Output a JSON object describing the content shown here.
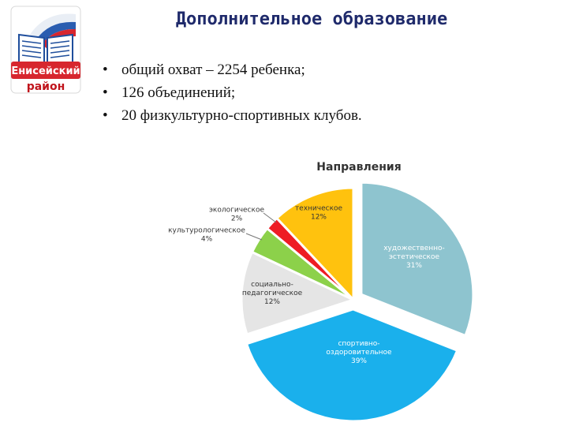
{
  "slide": {
    "title": "Дополнительное образование",
    "bullets": [
      "общий охват – 2254 ребенка;",
      "126 объединений;",
      "20 физкультурно-спортивных клубов."
    ],
    "logo": {
      "line1": "Енисейский",
      "line2": "район"
    }
  },
  "chart_data": {
    "type": "pie",
    "title": "Направления",
    "legend": "none",
    "slices": [
      {
        "label_lines": [
          "художественно-",
          "эстетическое"
        ],
        "value": 31,
        "value_label": "31%",
        "color": "#8ec4cf",
        "explode": 12,
        "label_fill": "#ffffff"
      },
      {
        "label_lines": [
          "спортивно-",
          "оздоровительное"
        ],
        "value": 39,
        "value_label": "39%",
        "color": "#1ab0ec",
        "explode": 12,
        "label_fill": "#ffffff"
      },
      {
        "label_lines": [
          "социально-",
          "педагогическое"
        ],
        "value": 12,
        "value_label": "12%",
        "color": "#e5e5e5",
        "explode": 0,
        "label_fill": "#333333"
      },
      {
        "label_lines": [
          "культурологическое"
        ],
        "value": 4,
        "value_label": "4%",
        "color": "#8cd14a",
        "explode": 0,
        "label_fill": "#333333"
      },
      {
        "label_lines": [
          "экологическое"
        ],
        "value": 2,
        "value_label": "2%",
        "color": "#ee1c24",
        "explode": 0,
        "label_fill": "#333333"
      },
      {
        "label_lines": [
          "техническое"
        ],
        "value": 12,
        "value_label": "12%",
        "color": "#ffc20e",
        "explode": 0,
        "label_fill": "#333333"
      }
    ]
  }
}
